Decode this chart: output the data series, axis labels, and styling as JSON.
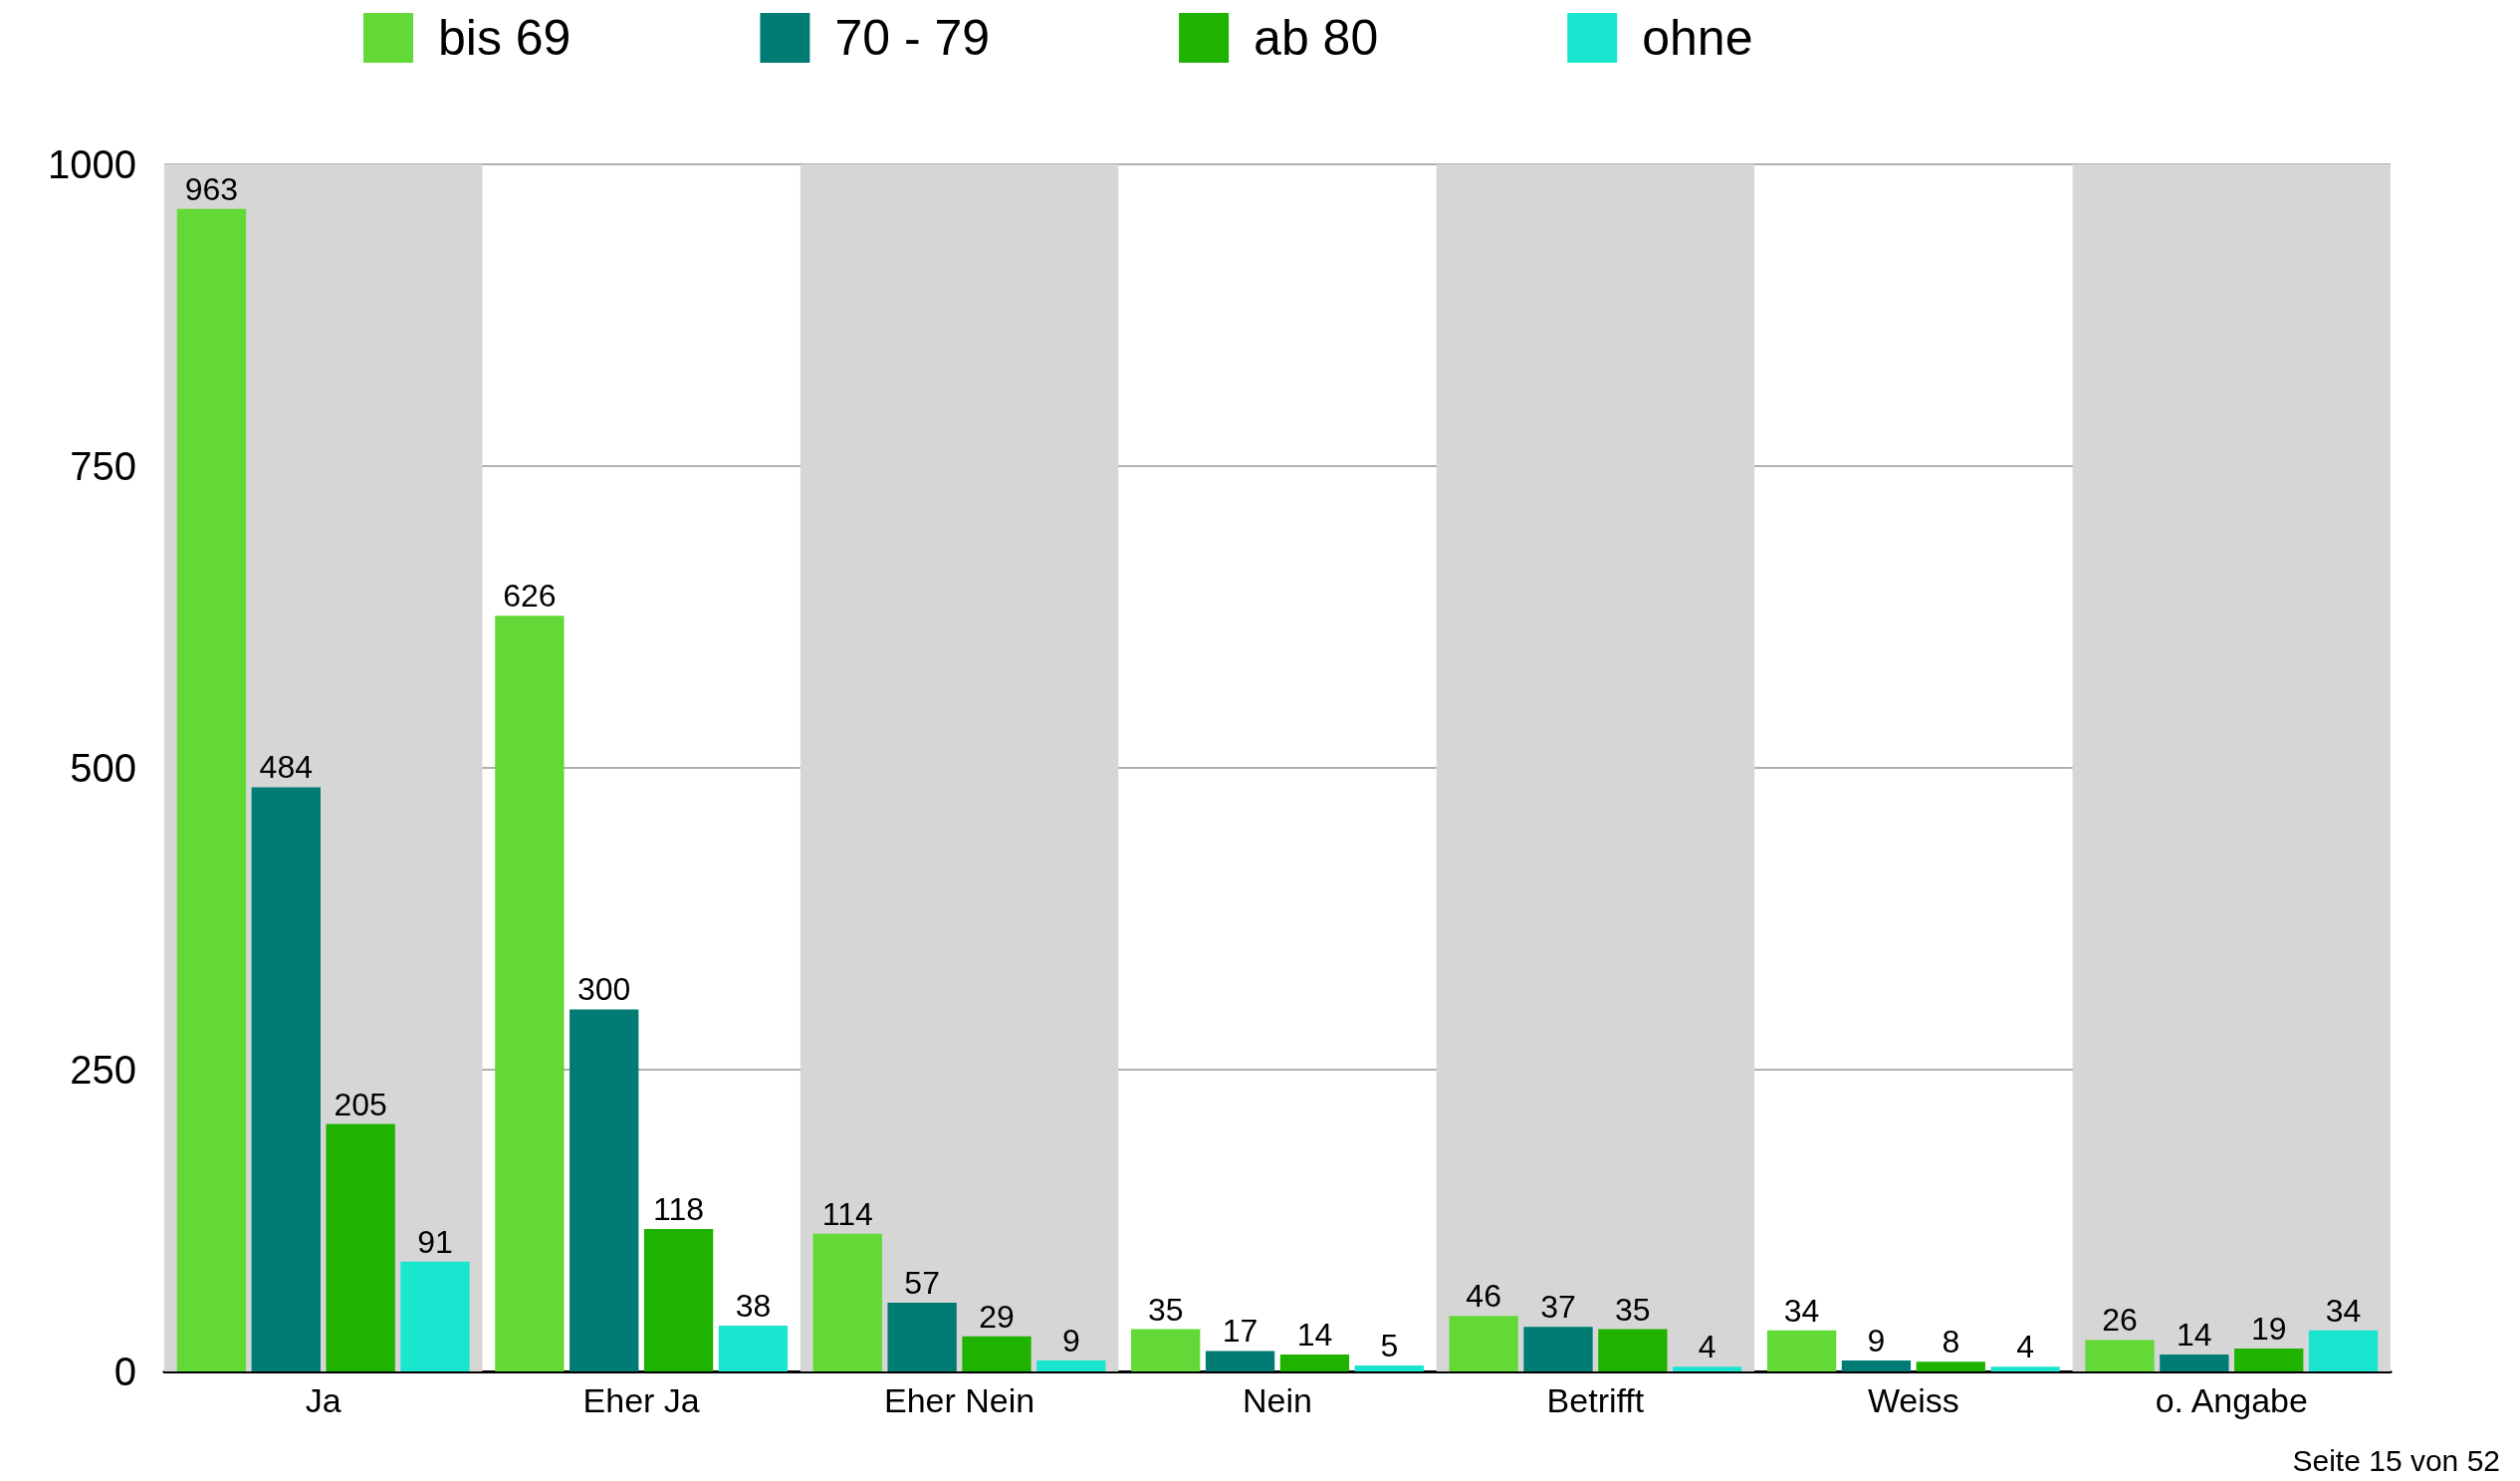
{
  "chart_data": {
    "type": "bar",
    "categories": [
      "Ja",
      "Eher Ja",
      "Eher Nein",
      "Nein",
      "Betrifft",
      "Weiss",
      "o. Angabe"
    ],
    "series": [
      {
        "name": "bis 69",
        "color": "#62d936",
        "values": [
          963,
          626,
          114,
          35,
          46,
          34,
          26
        ]
      },
      {
        "name": "70 - 79",
        "color": "#007c74",
        "values": [
          484,
          300,
          57,
          17,
          37,
          9,
          14
        ]
      },
      {
        "name": "ab 80",
        "color": "#1fb300",
        "values": [
          205,
          118,
          29,
          14,
          35,
          8,
          19
        ]
      },
      {
        "name": "ohne",
        "color": "#1ae6d0",
        "values": [
          91,
          38,
          9,
          5,
          4,
          4,
          34
        ]
      }
    ],
    "ylim": [
      0,
      1000
    ],
    "yticks": [
      0,
      250,
      500,
      750,
      1000
    ],
    "grid": "y",
    "legend": "top",
    "data_labels": true,
    "bands": [
      {
        "axis": "x",
        "from": "Ja",
        "to": "Ja",
        "color": "#d6d6d6"
      },
      {
        "axis": "x",
        "from": "Eher Nein",
        "to": "Eher Nein",
        "color": "#d6d6d6"
      },
      {
        "axis": "x",
        "from": "Betrifft",
        "to": "Betrifft",
        "color": "#d6d6d6"
      },
      {
        "axis": "x",
        "from": "o. Angabe",
        "to": "o. Angabe",
        "color": "#d6d6d6"
      }
    ],
    "annotations": [
      "Seite 15 von 52"
    ]
  }
}
